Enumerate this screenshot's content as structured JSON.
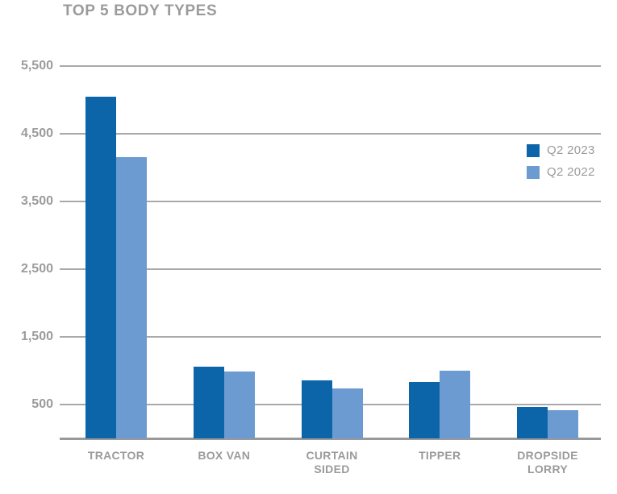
{
  "title": "TOP 5 BODY TYPES",
  "colors": {
    "series_2023": "#0d65a9",
    "series_2022": "#6c9bd2",
    "gridline": "#a9a9a9",
    "baseline": "#98999b",
    "text": "#9b9b9c"
  },
  "chart_data": {
    "type": "bar",
    "title": "TOP 5 BODY TYPES",
    "categories": [
      "TRACTOR",
      "BOX VAN",
      "CURTAIN SIDED",
      "TIPPER",
      "DROPSIDE LORRY"
    ],
    "series": [
      {
        "name": "Q2 2023",
        "color": "#0d65a9",
        "values": [
          5050,
          1060,
          860,
          830,
          460
        ]
      },
      {
        "name": "Q2 2022",
        "color": "#6c9bd2",
        "values": [
          4150,
          990,
          740,
          1000,
          420
        ]
      }
    ],
    "xlabel": "",
    "ylabel": "",
    "ylim": [
      0,
      5500
    ],
    "yticks": [
      500,
      1500,
      2500,
      3500,
      4500,
      5500
    ],
    "ytick_labels": [
      "500",
      "1,500",
      "2,500",
      "3,500",
      "4,500",
      "5,500"
    ],
    "grid": true,
    "legend_position": "right"
  }
}
